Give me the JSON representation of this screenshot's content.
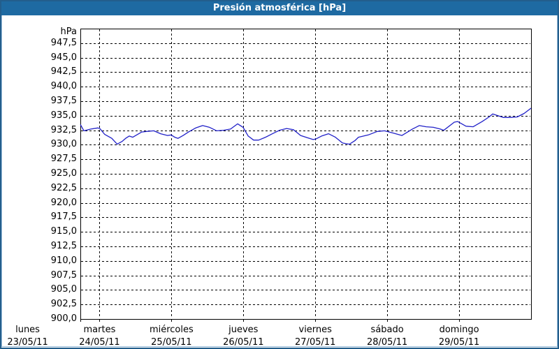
{
  "window": {
    "title": "Presión atmosférica [hPa]"
  },
  "colors": {
    "title_bar_bg": "#1E6AA2",
    "title_text": "#FFFFFF",
    "frame_border": "#235E8C",
    "frame_inner_border": "#9CBEDA",
    "plot_background": "#FFFFFF",
    "plot_border": "#000000",
    "grid": "#000000",
    "axis_text": "#000000",
    "series_line": "#2121C8"
  },
  "chart_data": {
    "type": "line",
    "title": "Presión atmosférica [hPa]",
    "ylabel": "hPa",
    "grid": "dashed",
    "legend": "none",
    "y_axis": {
      "min": 900,
      "max": 950,
      "grid_step": 2.5,
      "tick_labels_top_to_bottom": [
        "947,5",
        "945,0",
        "942,5",
        "940,0",
        "937,5",
        "935,0",
        "932,5",
        "930,0",
        "927,5",
        "925,0",
        "922,5",
        "920,0",
        "917,5",
        "915,0",
        "912,5",
        "910,0",
        "907,5",
        "905,0",
        "902,5",
        "900,0"
      ]
    },
    "x_axis": {
      "start_hours": 17.6,
      "end_hours": 168,
      "grid_step_hours": 24,
      "day_labels": [
        {
          "name": "lunes",
          "date": "23/05/11",
          "hour": 0
        },
        {
          "name": "martes",
          "date": "24/05/11",
          "hour": 24
        },
        {
          "name": "miércoles",
          "date": "25/05/11",
          "hour": 48
        },
        {
          "name": "jueves",
          "date": "26/05/11",
          "hour": 72
        },
        {
          "name": "viernes",
          "date": "27/05/11",
          "hour": 96
        },
        {
          "name": "sábado",
          "date": "28/05/11",
          "hour": 120
        },
        {
          "name": "domingo",
          "date": "29/05/11",
          "hour": 144
        }
      ]
    },
    "series": [
      {
        "name": "presión atmosférica",
        "unit": "hPa",
        "color": "#2121C8",
        "points_hours_hpa": [
          [
            17.6,
            933.5
          ],
          [
            18.8,
            932.4
          ],
          [
            21.1,
            932.7
          ],
          [
            23.4,
            932.9
          ],
          [
            24.1,
            932.8
          ],
          [
            25.7,
            931.8
          ],
          [
            28.1,
            931.1
          ],
          [
            29.9,
            930.1
          ],
          [
            31.6,
            930.6
          ],
          [
            32.7,
            931.1
          ],
          [
            33.9,
            931.5
          ],
          [
            35.1,
            931.3
          ],
          [
            38.1,
            932.2
          ],
          [
            39.7,
            932.3
          ],
          [
            42.1,
            932.4
          ],
          [
            44.4,
            931.9
          ],
          [
            46.7,
            931.6
          ],
          [
            47.9,
            931.7
          ],
          [
            49.1,
            931.3
          ],
          [
            50.2,
            931.1
          ],
          [
            51.9,
            931.6
          ],
          [
            53.7,
            932.2
          ],
          [
            56.1,
            932.9
          ],
          [
            58.4,
            933.3
          ],
          [
            60.7,
            933.0
          ],
          [
            63.1,
            932.4
          ],
          [
            65.4,
            932.5
          ],
          [
            67.7,
            932.7
          ],
          [
            70.1,
            933.6
          ],
          [
            71.9,
            933.0
          ],
          [
            73.6,
            931.5
          ],
          [
            75.4,
            930.8
          ],
          [
            77.1,
            930.8
          ],
          [
            79.4,
            931.3
          ],
          [
            81.7,
            931.9
          ],
          [
            84.1,
            932.5
          ],
          [
            86.4,
            932.8
          ],
          [
            88.7,
            932.6
          ],
          [
            91.1,
            931.6
          ],
          [
            93.4,
            931.2
          ],
          [
            95.3,
            930.9
          ],
          [
            96.2,
            931.0
          ],
          [
            98.1,
            931.5
          ],
          [
            100.4,
            931.9
          ],
          [
            102.7,
            931.3
          ],
          [
            105.1,
            930.3
          ],
          [
            107.4,
            930.1
          ],
          [
            109.2,
            930.7
          ],
          [
            110.4,
            931.3
          ],
          [
            113.7,
            931.7
          ],
          [
            116.7,
            932.3
          ],
          [
            119.1,
            932.4
          ],
          [
            122.1,
            932.0
          ],
          [
            124.9,
            931.6
          ],
          [
            128.4,
            932.7
          ],
          [
            130.7,
            933.3
          ],
          [
            133.0,
            933.1
          ],
          [
            135.4,
            933.0
          ],
          [
            137.7,
            932.7
          ],
          [
            138.9,
            932.5
          ],
          [
            142.4,
            933.9
          ],
          [
            143.5,
            934.0
          ],
          [
            146.3,
            933.2
          ],
          [
            148.7,
            933.1
          ],
          [
            151.7,
            934.0
          ],
          [
            154.0,
            934.8
          ],
          [
            155.2,
            935.3
          ],
          [
            158.7,
            934.7
          ],
          [
            161.0,
            934.7
          ],
          [
            163.4,
            934.8
          ],
          [
            165.7,
            935.4
          ],
          [
            168.0,
            936.3
          ]
        ]
      }
    ]
  }
}
